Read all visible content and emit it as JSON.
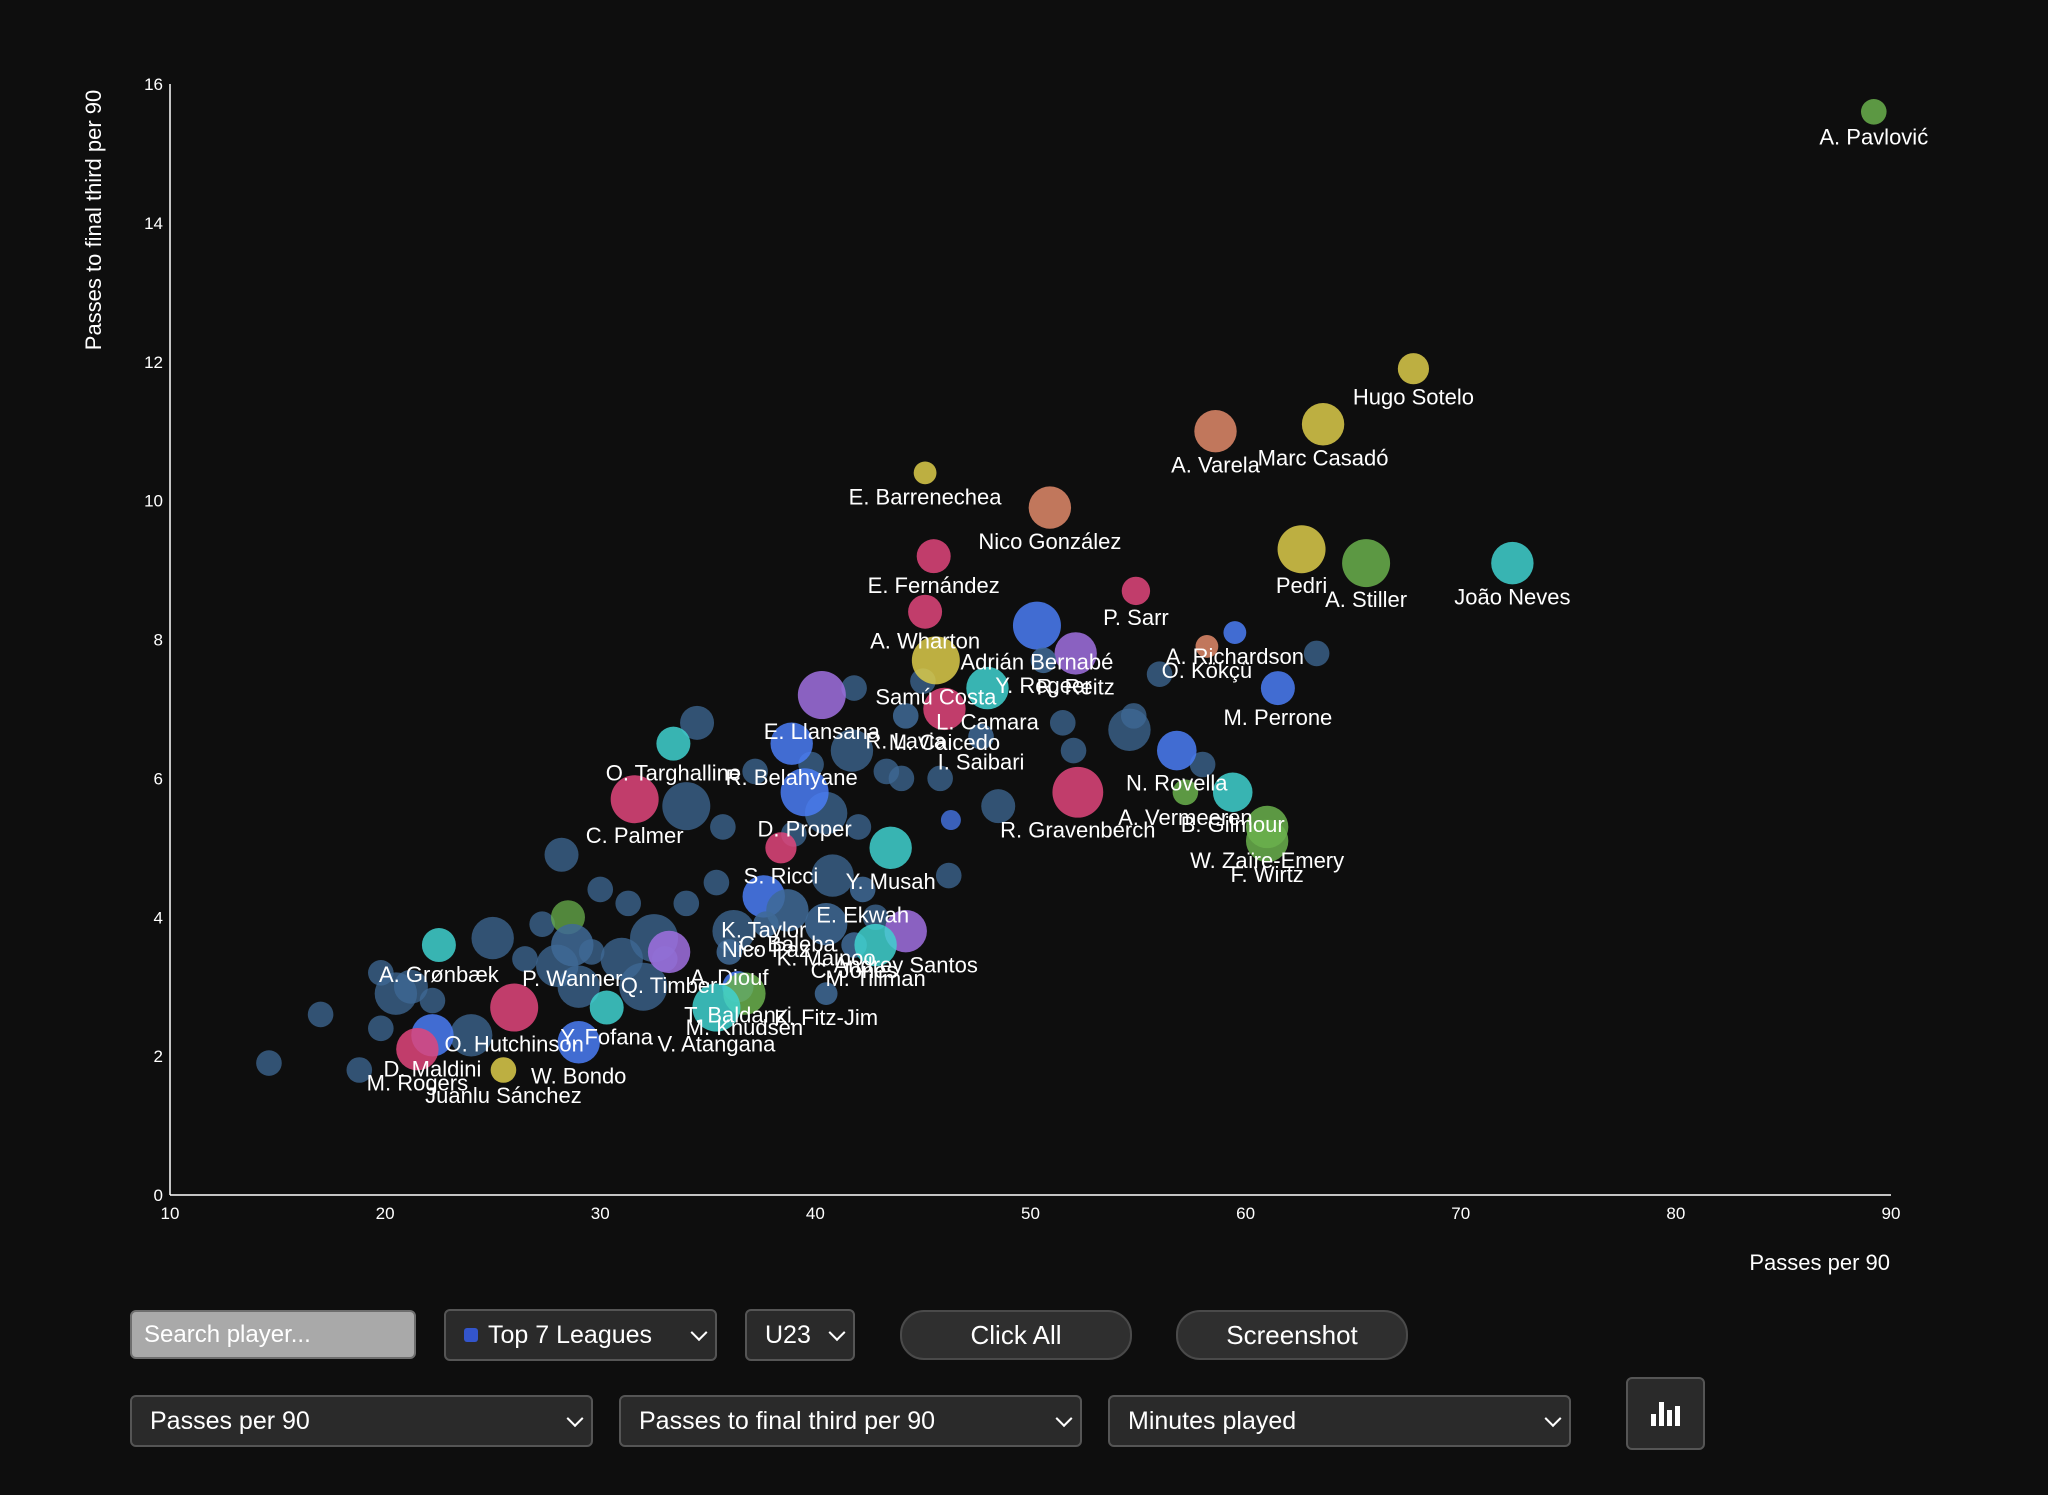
{
  "chart_data": {
    "type": "scatter",
    "xlabel": "Passes per 90",
    "ylabel": "Passes to final third per 90",
    "xlim": [
      10,
      90
    ],
    "ylim": [
      0,
      16
    ],
    "xticks": [
      10,
      20,
      30,
      40,
      50,
      60,
      70,
      80,
      90
    ],
    "yticks": [
      0,
      2,
      4,
      6,
      8,
      10,
      12,
      14,
      16
    ],
    "grid": false,
    "size_by": "Minutes played",
    "colors": {
      "pink": "#e0457b",
      "green": "#6ab04c",
      "yellow": "#dccb4a",
      "cyan": "#3fd1cf",
      "blue": "#4a7cf4",
      "purple": "#a070e0",
      "orange": "#e08a6a",
      "steel": "#3f6a96"
    },
    "labeled_points": [
      {
        "label": "A. Pavlović",
        "x": 89.2,
        "y": 15.6,
        "size": 1,
        "color": "green",
        "anchor": "below"
      },
      {
        "label": "Hugo Sotelo",
        "x": 67.8,
        "y": 11.9,
        "size": 1.2,
        "color": "yellow",
        "anchor": "below"
      },
      {
        "label": "A. Varela",
        "x": 58.6,
        "y": 11.0,
        "size": 1.6,
        "color": "orange",
        "anchor": "below"
      },
      {
        "label": "Marc Casadó",
        "x": 63.6,
        "y": 11.1,
        "size": 1.6,
        "color": "yellow",
        "anchor": "below"
      },
      {
        "label": "E. Barrenechea",
        "x": 45.1,
        "y": 10.4,
        "size": 0.9,
        "color": "yellow",
        "anchor": "below"
      },
      {
        "label": "Nico González",
        "x": 50.9,
        "y": 9.9,
        "size": 1.6,
        "color": "orange",
        "anchor": "below"
      },
      {
        "label": "Pedri",
        "x": 62.6,
        "y": 9.3,
        "size": 1.8,
        "color": "yellow",
        "anchor": "below"
      },
      {
        "label": "A. Stiller",
        "x": 65.6,
        "y": 9.1,
        "size": 1.8,
        "color": "green",
        "anchor": "below"
      },
      {
        "label": "João Neves",
        "x": 72.4,
        "y": 9.1,
        "size": 1.6,
        "color": "cyan",
        "anchor": "below"
      },
      {
        "label": "E. Fernández",
        "x": 45.5,
        "y": 9.2,
        "size": 1.3,
        "color": "pink",
        "anchor": "below"
      },
      {
        "label": "P. Sarr",
        "x": 54.9,
        "y": 8.7,
        "size": 1.1,
        "color": "pink",
        "anchor": "below"
      },
      {
        "label": "A. Wharton",
        "x": 45.1,
        "y": 8.4,
        "size": 1.3,
        "color": "pink",
        "anchor": "below"
      },
      {
        "label": "Adrián Bernabé",
        "x": 50.3,
        "y": 8.2,
        "size": 1.8,
        "color": "blue",
        "anchor": "below"
      },
      {
        "label": "A. Richardson",
        "x": 59.5,
        "y": 8.1,
        "size": 0.9,
        "color": "blue",
        "anchor": "below"
      },
      {
        "label": "O. Kökçü",
        "x": 58.2,
        "y": 7.9,
        "size": 0.9,
        "color": "orange",
        "anchor": "below"
      },
      {
        "label": "Samú Costa",
        "x": 45.6,
        "y": 7.7,
        "size": 1.8,
        "color": "yellow",
        "anchor": "below"
      },
      {
        "label": "R. Reitz",
        "x": 52.1,
        "y": 7.8,
        "size": 1.6,
        "color": "purple",
        "anchor": "below"
      },
      {
        "label": "Y. Regeer",
        "x": 50.6,
        "y": 7.7,
        "size": 1.0,
        "color": "steel",
        "anchor": "below"
      },
      {
        "label": "M. Perrone",
        "x": 61.5,
        "y": 7.3,
        "size": 1.3,
        "color": "blue",
        "anchor": "below"
      },
      {
        "label": "E. Llansana",
        "x": 40.3,
        "y": 7.2,
        "size": 1.8,
        "color": "purple",
        "anchor": "below"
      },
      {
        "label": "L. Camara",
        "x": 48.0,
        "y": 7.3,
        "size": 1.6,
        "color": "cyan",
        "anchor": "below"
      },
      {
        "label": "M. Caicedo",
        "x": 46.0,
        "y": 7.0,
        "size": 1.6,
        "color": "pink",
        "anchor": "below"
      },
      {
        "label": "R. Lavia",
        "x": 44.2,
        "y": 6.9,
        "size": 1.0,
        "color": "steel",
        "anchor": "below"
      },
      {
        "label": "O. Targhalline",
        "x": 33.4,
        "y": 6.5,
        "size": 1.3,
        "color": "cyan",
        "anchor": "below"
      },
      {
        "label": "R. Belahyane",
        "x": 38.9,
        "y": 6.5,
        "size": 1.6,
        "color": "blue",
        "anchor": "below"
      },
      {
        "label": "I. Saibari",
        "x": 47.7,
        "y": 6.6,
        "size": 1.0,
        "color": "steel",
        "anchor": "below"
      },
      {
        "label": "N. Rovella",
        "x": 56.8,
        "y": 6.4,
        "size": 1.5,
        "color": "blue",
        "anchor": "below"
      },
      {
        "label": "B. Gilmour",
        "x": 59.4,
        "y": 5.8,
        "size": 1.5,
        "color": "cyan",
        "anchor": "below"
      },
      {
        "label": "C. Palmer",
        "x": 31.6,
        "y": 5.7,
        "size": 1.8,
        "color": "pink",
        "anchor": "below"
      },
      {
        "label": "D. Proper",
        "x": 39.5,
        "y": 5.8,
        "size": 1.8,
        "color": "blue",
        "anchor": "below"
      },
      {
        "label": "R. Gravenberch",
        "x": 52.2,
        "y": 5.8,
        "size": 1.9,
        "color": "pink",
        "anchor": "below"
      },
      {
        "label": "A. Vermeeren",
        "x": 57.2,
        "y": 5.8,
        "size": 1.0,
        "color": "green",
        "anchor": "below"
      },
      {
        "label": "W. Zaïre-Emery",
        "x": 61.0,
        "y": 5.3,
        "size": 1.6,
        "color": "green",
        "anchor": "below"
      },
      {
        "label": "S. Ricci",
        "x": 38.4,
        "y": 5.0,
        "size": 1.2,
        "color": "pink",
        "anchor": "below"
      },
      {
        "label": "Y. Musah",
        "x": 43.5,
        "y": 5.0,
        "size": 1.6,
        "color": "cyan",
        "anchor": "below"
      },
      {
        "label": "F. Wirtz",
        "x": 61.0,
        "y": 5.1,
        "size": 1.6,
        "color": "green",
        "anchor": "below"
      },
      {
        "label": "K. Taylor",
        "x": 37.6,
        "y": 4.3,
        "size": 1.6,
        "color": "blue",
        "anchor": "below"
      },
      {
        "label": "C. Baleba",
        "x": 38.7,
        "y": 4.1,
        "size": 1.6,
        "color": "steel",
        "anchor": "below"
      },
      {
        "label": "E. Ekwah",
        "x": 42.2,
        "y": 4.4,
        "size": 1.0,
        "color": "steel",
        "anchor": "below"
      },
      {
        "label": "Nico Paz",
        "x": 37.7,
        "y": 3.9,
        "size": 1.0,
        "color": "steel",
        "anchor": "below"
      },
      {
        "label": "K. Mainoo",
        "x": 40.5,
        "y": 3.9,
        "size": 1.6,
        "color": "steel",
        "anchor": "below"
      },
      {
        "label": "Q. Timber",
        "x": 33.2,
        "y": 3.5,
        "size": 1.6,
        "color": "purple",
        "anchor": "below"
      },
      {
        "label": "A. Diouf",
        "x": 36.0,
        "y": 3.5,
        "size": 1.0,
        "color": "steel",
        "anchor": "below"
      },
      {
        "label": "C. Jones",
        "x": 41.8,
        "y": 3.6,
        "size": 1.0,
        "color": "steel",
        "anchor": "below"
      },
      {
        "label": "P. Wanner",
        "x": 28.7,
        "y": 3.6,
        "size": 1.6,
        "color": "steel",
        "anchor": "below"
      },
      {
        "label": "Andrey Santos",
        "x": 44.2,
        "y": 3.8,
        "size": 1.6,
        "color": "purple",
        "anchor": "below"
      },
      {
        "label": "M. Tillman",
        "x": 42.8,
        "y": 3.6,
        "size": 1.6,
        "color": "cyan",
        "anchor": "below"
      },
      {
        "label": "A. Grønbæk",
        "x": 22.5,
        "y": 3.6,
        "size": 1.3,
        "color": "cyan",
        "anchor": "below"
      },
      {
        "label": "T. Baldanzi",
        "x": 36.4,
        "y": 3.0,
        "size": 1.2,
        "color": "blue",
        "anchor": "below"
      },
      {
        "label": "M. Knudsen",
        "x": 36.7,
        "y": 2.9,
        "size": 1.6,
        "color": "green",
        "anchor": "below"
      },
      {
        "label": "K. Fitz-Jim",
        "x": 40.5,
        "y": 2.9,
        "size": 0.9,
        "color": "steel",
        "anchor": "below"
      },
      {
        "label": "Y. Fofana",
        "x": 30.3,
        "y": 2.7,
        "size": 1.3,
        "color": "cyan",
        "anchor": "below"
      },
      {
        "label": "V. Atangana",
        "x": 35.4,
        "y": 2.7,
        "size": 1.8,
        "color": "cyan",
        "anchor": "below"
      },
      {
        "label": "O. Hutchinson",
        "x": 26.0,
        "y": 2.7,
        "size": 1.8,
        "color": "pink",
        "anchor": "below"
      },
      {
        "label": "W. Bondo",
        "x": 29.0,
        "y": 2.2,
        "size": 1.6,
        "color": "blue",
        "anchor": "below"
      },
      {
        "label": "D. Maldini",
        "x": 22.2,
        "y": 2.3,
        "size": 1.6,
        "color": "blue",
        "anchor": "below"
      },
      {
        "label": "M. Rogers",
        "x": 21.5,
        "y": 2.1,
        "size": 1.6,
        "color": "pink",
        "anchor": "below"
      },
      {
        "label": "Juanlu Sánchez",
        "x": 25.5,
        "y": 1.8,
        "size": 1.0,
        "color": "yellow",
        "anchor": "below"
      }
    ],
    "unlabeled_points": [
      {
        "x": 14.6,
        "y": 1.9,
        "size": 1.0,
        "color": "steel"
      },
      {
        "x": 17.0,
        "y": 2.6,
        "size": 1.0,
        "color": "steel"
      },
      {
        "x": 18.8,
        "y": 1.8,
        "size": 1.0,
        "color": "steel"
      },
      {
        "x": 19.8,
        "y": 3.2,
        "size": 1.0,
        "color": "steel"
      },
      {
        "x": 19.8,
        "y": 2.4,
        "size": 1.0,
        "color": "steel"
      },
      {
        "x": 20.5,
        "y": 2.9,
        "size": 1.6,
        "color": "steel"
      },
      {
        "x": 21.2,
        "y": 3.0,
        "size": 1.3,
        "color": "steel"
      },
      {
        "x": 22.2,
        "y": 2.8,
        "size": 1.0,
        "color": "steel"
      },
      {
        "x": 24.0,
        "y": 2.3,
        "size": 1.6,
        "color": "steel"
      },
      {
        "x": 25.0,
        "y": 3.7,
        "size": 1.6,
        "color": "steel"
      },
      {
        "x": 26.5,
        "y": 3.4,
        "size": 1.0,
        "color": "steel"
      },
      {
        "x": 27.3,
        "y": 3.9,
        "size": 1.0,
        "color": "steel"
      },
      {
        "x": 28.0,
        "y": 3.3,
        "size": 1.6,
        "color": "steel"
      },
      {
        "x": 28.2,
        "y": 4.9,
        "size": 1.3,
        "color": "steel"
      },
      {
        "x": 28.5,
        "y": 4.0,
        "size": 1.3,
        "color": "green"
      },
      {
        "x": 29.0,
        "y": 3.0,
        "size": 1.6,
        "color": "steel"
      },
      {
        "x": 29.6,
        "y": 3.5,
        "size": 1.0,
        "color": "steel"
      },
      {
        "x": 30.0,
        "y": 4.4,
        "size": 1.0,
        "color": "steel"
      },
      {
        "x": 31.0,
        "y": 3.4,
        "size": 1.6,
        "color": "steel"
      },
      {
        "x": 31.3,
        "y": 4.2,
        "size": 1.0,
        "color": "steel"
      },
      {
        "x": 32.0,
        "y": 3.0,
        "size": 1.8,
        "color": "steel"
      },
      {
        "x": 32.5,
        "y": 3.7,
        "size": 1.8,
        "color": "steel"
      },
      {
        "x": 33.0,
        "y": 3.4,
        "size": 1.0,
        "color": "steel"
      },
      {
        "x": 34.0,
        "y": 4.2,
        "size": 1.0,
        "color": "steel"
      },
      {
        "x": 34.0,
        "y": 5.6,
        "size": 1.8,
        "color": "steel"
      },
      {
        "x": 34.5,
        "y": 6.8,
        "size": 1.3,
        "color": "steel"
      },
      {
        "x": 35.4,
        "y": 4.5,
        "size": 1.0,
        "color": "steel"
      },
      {
        "x": 35.7,
        "y": 5.3,
        "size": 1.0,
        "color": "steel"
      },
      {
        "x": 36.2,
        "y": 3.8,
        "size": 1.6,
        "color": "steel"
      },
      {
        "x": 37.2,
        "y": 6.1,
        "size": 1.0,
        "color": "steel"
      },
      {
        "x": 39.0,
        "y": 5.2,
        "size": 1.0,
        "color": "steel"
      },
      {
        "x": 39.8,
        "y": 6.2,
        "size": 1.0,
        "color": "steel"
      },
      {
        "x": 40.5,
        "y": 5.5,
        "size": 1.6,
        "color": "steel"
      },
      {
        "x": 40.8,
        "y": 4.6,
        "size": 1.6,
        "color": "steel"
      },
      {
        "x": 41.7,
        "y": 6.4,
        "size": 1.6,
        "color": "steel"
      },
      {
        "x": 41.8,
        "y": 7.3,
        "size": 1.0,
        "color": "steel"
      },
      {
        "x": 42.0,
        "y": 5.3,
        "size": 1.0,
        "color": "steel"
      },
      {
        "x": 42.8,
        "y": 4.0,
        "size": 1.0,
        "color": "steel"
      },
      {
        "x": 43.3,
        "y": 6.1,
        "size": 1.0,
        "color": "steel"
      },
      {
        "x": 44.0,
        "y": 6.0,
        "size": 1.0,
        "color": "steel"
      },
      {
        "x": 45.0,
        "y": 7.4,
        "size": 1.0,
        "color": "steel"
      },
      {
        "x": 45.8,
        "y": 6.0,
        "size": 1.0,
        "color": "steel"
      },
      {
        "x": 46.3,
        "y": 5.4,
        "size": 0.8,
        "color": "blue"
      },
      {
        "x": 46.2,
        "y": 4.6,
        "size": 1.0,
        "color": "steel"
      },
      {
        "x": 48.5,
        "y": 5.6,
        "size": 1.3,
        "color": "steel"
      },
      {
        "x": 51.5,
        "y": 6.8,
        "size": 1.0,
        "color": "steel"
      },
      {
        "x": 52.0,
        "y": 6.4,
        "size": 1.0,
        "color": "steel"
      },
      {
        "x": 54.6,
        "y": 6.7,
        "size": 1.6,
        "color": "steel"
      },
      {
        "x": 54.8,
        "y": 6.9,
        "size": 1.0,
        "color": "steel"
      },
      {
        "x": 56.0,
        "y": 7.5,
        "size": 1.0,
        "color": "steel"
      },
      {
        "x": 58.0,
        "y": 6.2,
        "size": 1.0,
        "color": "steel"
      },
      {
        "x": 63.3,
        "y": 7.8,
        "size": 1.0,
        "color": "steel"
      }
    ]
  },
  "controls": {
    "search_placeholder": "Search player...",
    "league_select": "Top 7 Leagues",
    "age_select": "U23",
    "click_all_label": "Click All",
    "screenshot_label": "Screenshot",
    "x_metric_select": "Passes per 90",
    "y_metric_select": "Passes to final third per 90",
    "size_metric_select": "Minutes played",
    "chart_icon": "bar-chart-icon"
  }
}
